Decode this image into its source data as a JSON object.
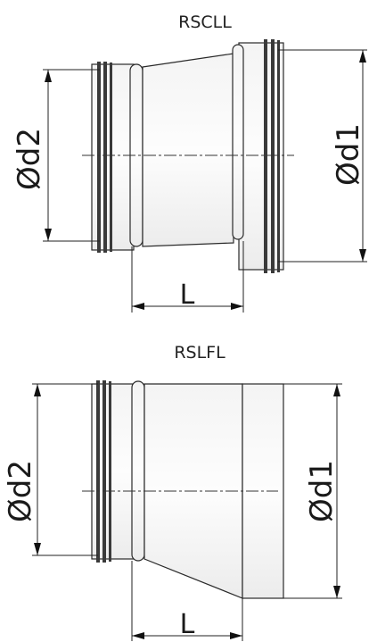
{
  "figures": [
    {
      "id": "rscll",
      "title": "RSCLL",
      "dimension_d2": "Ød2",
      "dimension_d1": "Ød1",
      "dimension_length": "L"
    },
    {
      "id": "rslfl",
      "title": "RSLFL",
      "dimension_d2": "Ød2",
      "dimension_d1": "Ød1",
      "dimension_length": "L"
    }
  ]
}
